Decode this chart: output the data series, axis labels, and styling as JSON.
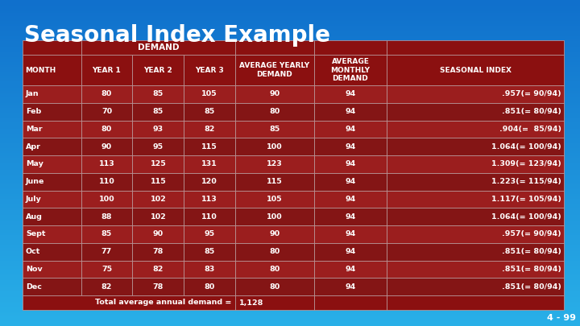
{
  "title": "Seasonal Index Example",
  "months": [
    "Jan",
    "Feb",
    "Mar",
    "Apr",
    "May",
    "June",
    "July",
    "Aug",
    "Sept",
    "Oct",
    "Nov",
    "Dec"
  ],
  "year1": [
    80,
    70,
    80,
    90,
    113,
    110,
    100,
    88,
    85,
    77,
    75,
    82
  ],
  "year2": [
    85,
    85,
    93,
    95,
    125,
    115,
    102,
    102,
    90,
    78,
    82,
    78
  ],
  "year3": [
    105,
    85,
    82,
    115,
    131,
    120,
    113,
    110,
    95,
    85,
    83,
    80
  ],
  "avg_yearly": [
    90,
    80,
    85,
    100,
    123,
    115,
    105,
    100,
    90,
    80,
    80,
    80
  ],
  "avg_monthly": [
    94,
    94,
    94,
    94,
    94,
    94,
    94,
    94,
    94,
    94,
    94,
    94
  ],
  "seasonal_index": [
    ".957(= 90/94)",
    ".851(= 80/94)",
    ".904(=  85/94)",
    "1.064(= 100/94)",
    "1.309(= 123/94)",
    "1.223(= 115/94)",
    "1.117(= 105/94)",
    "1.064(= 100/94)",
    ".957(= 90/94)",
    ".851(= 80/94)",
    ".851(= 80/94)",
    ".851(= 80/94)"
  ],
  "footer_label": "Total average annual demand =",
  "footer_value": "1,128",
  "slide_number": "4 - 99",
  "col_labels": [
    "MONTH",
    "YEAR 1",
    "YEAR 2",
    "YEAR 3",
    "AVERAGE YEARLY\nDEMAND",
    "AVERAGE\nMONTHLY\nDEMAND",
    "SEASONAL INDEX"
  ],
  "header_color": "#8b1010",
  "row_colors": [
    "#9b1e1e",
    "#841515"
  ],
  "border_color": "#c0a0a0",
  "bg_color_top": "#29b0e8",
  "bg_color_bottom": "#1888cc",
  "title_color": "white",
  "text_color": "white",
  "slide_num_color": "white"
}
